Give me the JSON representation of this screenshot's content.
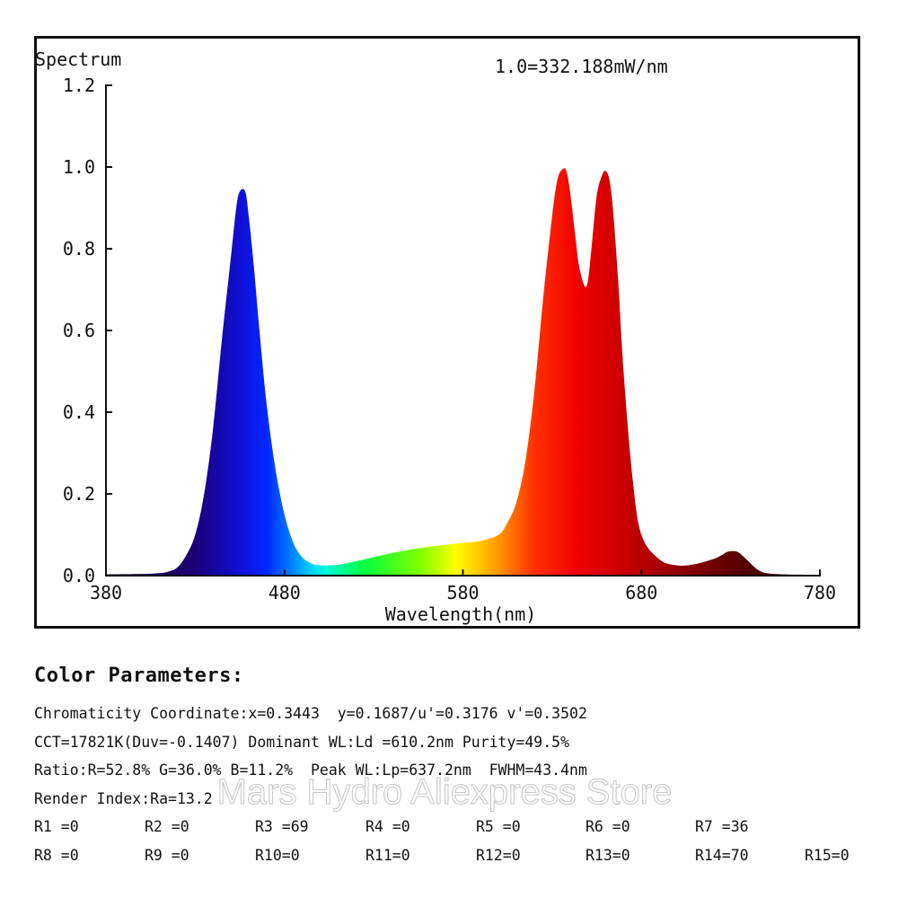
{
  "chart_data": {
    "type": "area",
    "title": "Spectrum",
    "annotation": "1.0=332.188mW/nm",
    "xlabel": "Wavelength(nm)",
    "ylabel": "",
    "xlim": [
      380,
      780
    ],
    "ylim": [
      0,
      1.2
    ],
    "xticks": [
      "380",
      "480",
      "580",
      "680",
      "780"
    ],
    "yticks": [
      "0.0",
      "0.2",
      "0.4",
      "0.6",
      "0.8",
      "1.0",
      "1.2"
    ],
    "grid": false,
    "fill": "visible-spectrum gradient",
    "series": [
      {
        "x": [
          380,
          400,
          410,
          415,
          420,
          425,
          430,
          435,
          440,
          445,
          450,
          453,
          455,
          458,
          460,
          463,
          466,
          470,
          475,
          480,
          485,
          490,
          495,
          500,
          510,
          520,
          540,
          560,
          580,
          590,
          600,
          605,
          610,
          615,
          620,
          625,
          630,
          633,
          636,
          638,
          640,
          643,
          645,
          648,
          650,
          652,
          655,
          658,
          660,
          662,
          664,
          667,
          670,
          675,
          680,
          690,
          700,
          710,
          720,
          725,
          728,
          732,
          735,
          740,
          745,
          750,
          760,
          780
        ],
        "values": [
          0.003,
          0.004,
          0.006,
          0.01,
          0.02,
          0.05,
          0.1,
          0.2,
          0.36,
          0.58,
          0.78,
          0.9,
          0.94,
          0.94,
          0.88,
          0.75,
          0.6,
          0.42,
          0.26,
          0.15,
          0.08,
          0.045,
          0.03,
          0.025,
          0.027,
          0.035,
          0.055,
          0.07,
          0.08,
          0.085,
          0.1,
          0.13,
          0.18,
          0.28,
          0.45,
          0.68,
          0.88,
          0.97,
          0.995,
          0.99,
          0.94,
          0.83,
          0.76,
          0.71,
          0.72,
          0.8,
          0.93,
          0.98,
          0.99,
          0.97,
          0.9,
          0.72,
          0.5,
          0.24,
          0.1,
          0.04,
          0.025,
          0.028,
          0.04,
          0.05,
          0.058,
          0.06,
          0.055,
          0.035,
          0.015,
          0.006,
          0.003,
          0.002
        ]
      }
    ]
  },
  "params": {
    "title": "Color Parameters:",
    "lines": [
      "Chromaticity Coordinate:x=0.3443  y=0.1687/u'=0.3176 v'=0.3502",
      "CCT=17821K(Duv=-0.1407) Dominant WL:Ld =610.2nm Purity=49.5%",
      "Ratio:R=52.8% G=36.0% B=11.2%  Peak WL:Lp=637.2nm  FWHM=43.4nm",
      "Render Index:Ra=13.2"
    ],
    "render_row1": [
      "R1 =0",
      "R2 =0",
      "R3 =69",
      "R4 =0",
      "R5 =0",
      "R6 =0",
      "R7 =36"
    ],
    "render_row2": [
      "R8 =0",
      "R9 =0",
      "R10=0",
      "R11=0",
      "R12=0",
      "R13=0",
      "R14=70",
      "R15=0"
    ]
  },
  "watermark": "Mars Hydro Aliexpress Store"
}
